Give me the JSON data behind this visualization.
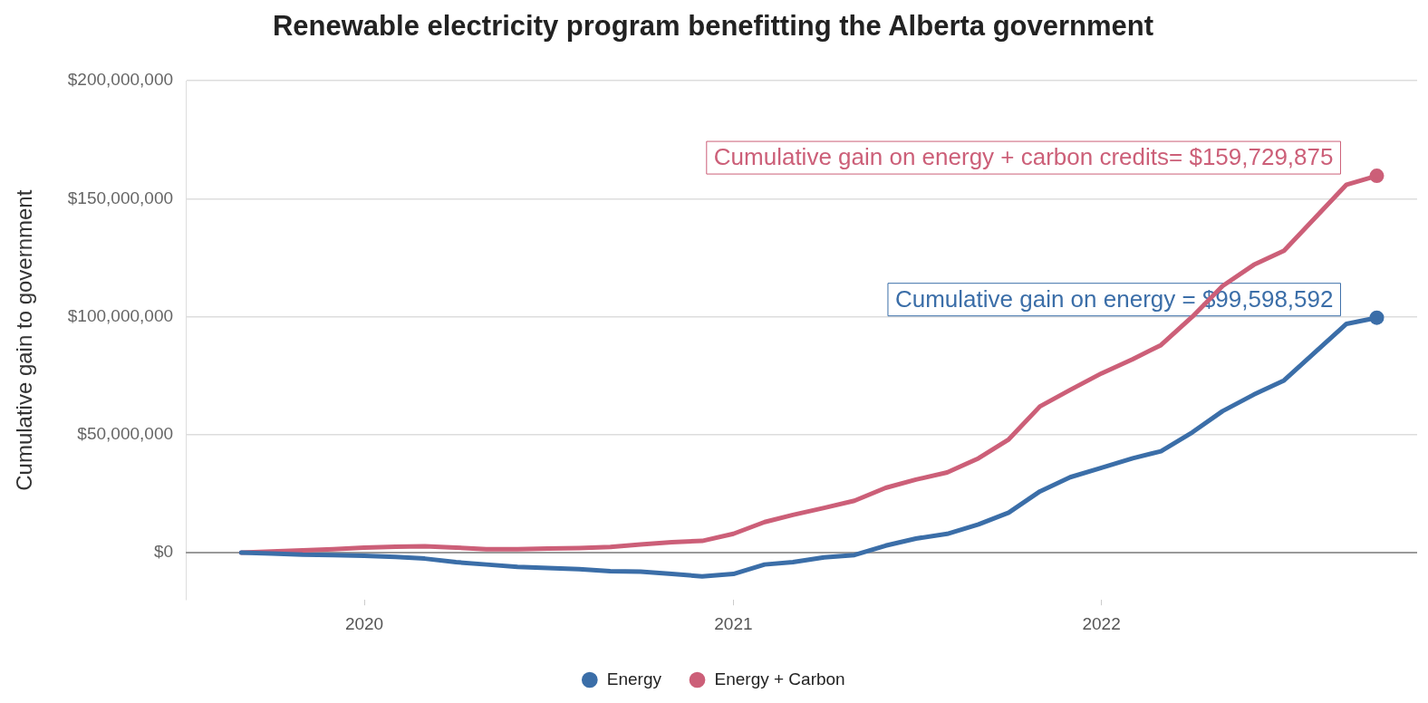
{
  "chart_data": {
    "type": "line",
    "title": "Renewable electricity program benefitting the Alberta government",
    "ylabel": "Cumulative gain to government",
    "x": [
      "2019-09",
      "2019-10",
      "2019-11",
      "2019-12",
      "2020-01",
      "2020-02",
      "2020-03",
      "2020-04",
      "2020-05",
      "2020-06",
      "2020-07",
      "2020-08",
      "2020-09",
      "2020-10",
      "2020-11",
      "2020-12",
      "2021-01",
      "2021-02",
      "2021-03",
      "2021-04",
      "2021-05",
      "2021-06",
      "2021-07",
      "2021-08",
      "2021-09",
      "2021-10",
      "2021-11",
      "2021-12",
      "2022-01",
      "2022-02",
      "2022-03",
      "2022-04",
      "2022-05",
      "2022-06",
      "2022-07",
      "2022-08",
      "2022-09",
      "2022-10"
    ],
    "series": [
      {
        "name": "Energy",
        "color": "#3b6ea8",
        "values": [
          0,
          -300000,
          -800000,
          -1000000,
          -1300000,
          -1800000,
          -2500000,
          -4000000,
          -5000000,
          -6000000,
          -6500000,
          -7000000,
          -7800000,
          -8000000,
          -9000000,
          -10000000,
          -9000000,
          -5000000,
          -4000000,
          -2000000,
          -1000000,
          3000000,
          6000000,
          8000000,
          12000000,
          17000000,
          26000000,
          32000000,
          36000000,
          40000000,
          43000000,
          51000000,
          60000000,
          67000000,
          73000000,
          85000000,
          97000000,
          99598592
        ]
      },
      {
        "name": "Energy + Carbon",
        "color": "#cc5f78",
        "values": [
          0,
          500000,
          1000000,
          1500000,
          2200000,
          2500000,
          2700000,
          2200000,
          1500000,
          1500000,
          1800000,
          2000000,
          2400000,
          3500000,
          4500000,
          5000000,
          8000000,
          13000000,
          16000000,
          19000000,
          22000000,
          27500000,
          31000000,
          34000000,
          40000000,
          48000000,
          62000000,
          69000000,
          76000000,
          82000000,
          88000000,
          100000000,
          113000000,
          122000000,
          128000000,
          142000000,
          156000000,
          159729875
        ]
      }
    ],
    "annotations": [
      {
        "text": "Cumulative gain on energy + carbon credits= $159,729,875",
        "x": "2022-10",
        "y": 159729875
      },
      {
        "text": "Cumulative gain on energy = $99,598,592",
        "x": "2022-10",
        "y": 99598592
      }
    ],
    "xlim": [
      "2019-07-08",
      "2022-11-10"
    ],
    "xticks": [
      {
        "value": "2020",
        "label": "2020"
      },
      {
        "value": "2021",
        "label": "2021"
      },
      {
        "value": "2022",
        "label": "2022"
      }
    ],
    "ylim": [
      -20000000,
      200000000
    ],
    "yticks": [
      {
        "value": 0,
        "label": "$0"
      },
      {
        "value": 50000000,
        "label": "$50,000,000"
      },
      {
        "value": 100000000,
        "label": "$100,000,000"
      },
      {
        "value": 150000000,
        "label": "$150,000,000"
      },
      {
        "value": 200000000,
        "label": "$200,000,000"
      }
    ],
    "ref_lines": [
      {
        "axis": "y",
        "value": 0,
        "color": "#9a9a9a"
      }
    ],
    "grid": "y",
    "legend": "bottom",
    "line_style": "solid"
  }
}
